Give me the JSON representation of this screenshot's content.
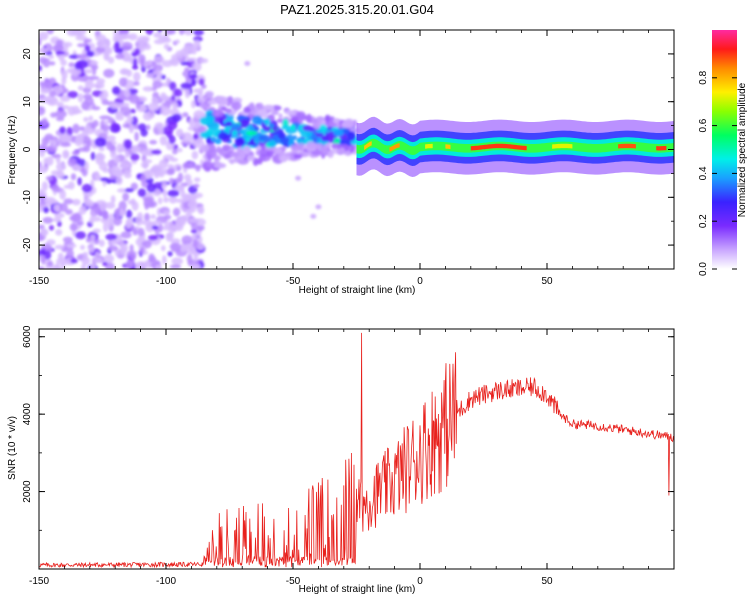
{
  "title": "PAZ1.2025.315.20.01.G04",
  "chart_data": [
    {
      "type": "heatmap",
      "xlabel": "Height of straight line (km)",
      "ylabel": "Frequency (Hz)",
      "xlim": [
        -150,
        100
      ],
      "ylim": [
        -25,
        25
      ],
      "xticks": [
        -150,
        -100,
        -50,
        0,
        50
      ],
      "yticks": [
        -20,
        -10,
        0,
        10,
        20
      ],
      "colorbar": {
        "label": "Normalized spectral amplitude",
        "range": [
          0,
          1
        ],
        "ticks": [
          "0.0",
          "0.2",
          "0.4",
          "0.6",
          "0.8"
        ],
        "tick_values": [
          0,
          0.2,
          0.4,
          0.6,
          0.8
        ]
      },
      "regions": [
        {
          "name": "noise",
          "x_range": [
            -150,
            -85
          ],
          "freq_range": [
            -25,
            25
          ],
          "amplitude": 0.1
        },
        {
          "name": "transition",
          "x_range": [
            -85,
            -25
          ],
          "freq_center": 4,
          "freq_spread": 6,
          "amplitude": 0.3
        },
        {
          "name": "signal-line",
          "x_range": [
            -25,
            100
          ],
          "freq_center": 0.5,
          "freq_spread": 1.2,
          "amplitude": 0.9
        }
      ]
    },
    {
      "type": "line",
      "xlabel": "Height of straight line (km)",
      "ylabel": "SNR (10 * v/v)",
      "xlim": [
        -150,
        100
      ],
      "ylim": [
        0,
        6200
      ],
      "xticks": [
        -150,
        -100,
        -50,
        0,
        50
      ],
      "yticks": [
        2000,
        4000,
        6000
      ],
      "color": "#e8211d",
      "series_profile": [
        {
          "x": -150,
          "y": 100
        },
        {
          "x": -85,
          "y": 120
        },
        {
          "x": -80,
          "y": 700
        },
        {
          "x": -70,
          "y": 800
        },
        {
          "x": -60,
          "y": 900
        },
        {
          "x": -50,
          "y": 900
        },
        {
          "x": -40,
          "y": 1100
        },
        {
          "x": -30,
          "y": 1400
        },
        {
          "x": -22,
          "y": 1700
        },
        {
          "x": -10,
          "y": 2300
        },
        {
          "x": 0,
          "y": 3000
        },
        {
          "x": 10,
          "y": 3700
        },
        {
          "x": 20,
          "y": 4400
        },
        {
          "x": 30,
          "y": 4600
        },
        {
          "x": 45,
          "y": 4700
        },
        {
          "x": 50,
          "y": 4500
        },
        {
          "x": 55,
          "y": 4000
        },
        {
          "x": 60,
          "y": 3750
        },
        {
          "x": 70,
          "y": 3700
        },
        {
          "x": 80,
          "y": 3600
        },
        {
          "x": 90,
          "y": 3500
        },
        {
          "x": 100,
          "y": 3400
        }
      ],
      "spikes": [
        {
          "x": -23,
          "y": 6100
        },
        {
          "x": 13,
          "y": 5300
        },
        {
          "x": 98,
          "y": 1900
        }
      ]
    }
  ]
}
